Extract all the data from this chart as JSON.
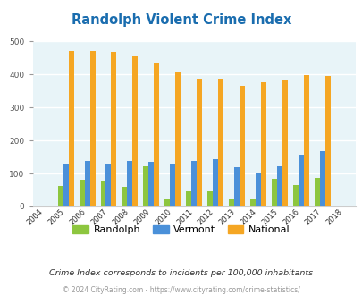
{
  "title": "Randolph Violent Crime Index",
  "years": [
    2004,
    2005,
    2006,
    2007,
    2008,
    2009,
    2010,
    2011,
    2012,
    2013,
    2014,
    2015,
    2016,
    2017,
    2018
  ],
  "randolph": [
    0,
    62,
    82,
    78,
    60,
    122,
    22,
    45,
    46,
    22,
    22,
    85,
    65,
    87,
    0
  ],
  "vermont": [
    0,
    128,
    138,
    128,
    138,
    135,
    130,
    138,
    144,
    120,
    100,
    122,
    158,
    168,
    0
  ],
  "national": [
    0,
    470,
    472,
    467,
    455,
    432,
    405,
    387,
    387,
    366,
    377,
    383,
    397,
    394,
    0
  ],
  "bar_width": 0.25,
  "colors": {
    "randolph": "#8DC63F",
    "vermont": "#4A90D9",
    "national": "#F5A623"
  },
  "ylim": [
    0,
    500
  ],
  "yticks": [
    0,
    100,
    200,
    300,
    400,
    500
  ],
  "bg_color": "#E8F4F8",
  "grid_color": "#FFFFFF",
  "title_color": "#1A6DAF",
  "footer_note": "Crime Index corresponds to incidents per 100,000 inhabitants",
  "copyright": "© 2024 CityRating.com - https://www.cityrating.com/crime-statistics/",
  "legend_labels": [
    "Randolph",
    "Vermont",
    "National"
  ]
}
